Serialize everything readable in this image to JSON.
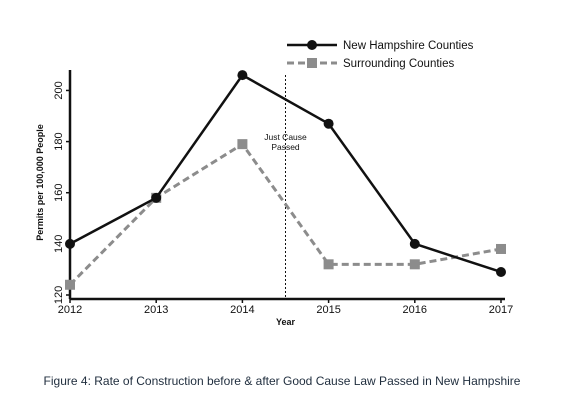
{
  "chart_data": {
    "type": "line",
    "x": [
      "2012",
      "2013",
      "2014",
      "2015",
      "2016",
      "2017"
    ],
    "series": [
      {
        "name": "New Hampshire Counties",
        "values": [
          140,
          158,
          206,
          187,
          140,
          129
        ],
        "color": "#111111",
        "marker": "circle",
        "line_style": "solid"
      },
      {
        "name": "Surrounding Counties",
        "values": [
          124,
          158,
          179,
          132,
          132,
          138
        ],
        "color": "#8c8c8c",
        "marker": "square",
        "line_style": "dashed"
      }
    ],
    "xlabel": "Year",
    "ylabel": "Permits per 100,000 People",
    "yticks": [
      120,
      140,
      160,
      180,
      200
    ],
    "ylim": [
      120,
      208
    ],
    "annotation": {
      "lines": [
        "Just Cause",
        "Passed"
      ],
      "x": 2014.5
    },
    "legend_position": "top-right",
    "grid": false
  },
  "caption": "Figure 4: Rate of Construction before & after Good Cause Law Passed in New Hampshire"
}
